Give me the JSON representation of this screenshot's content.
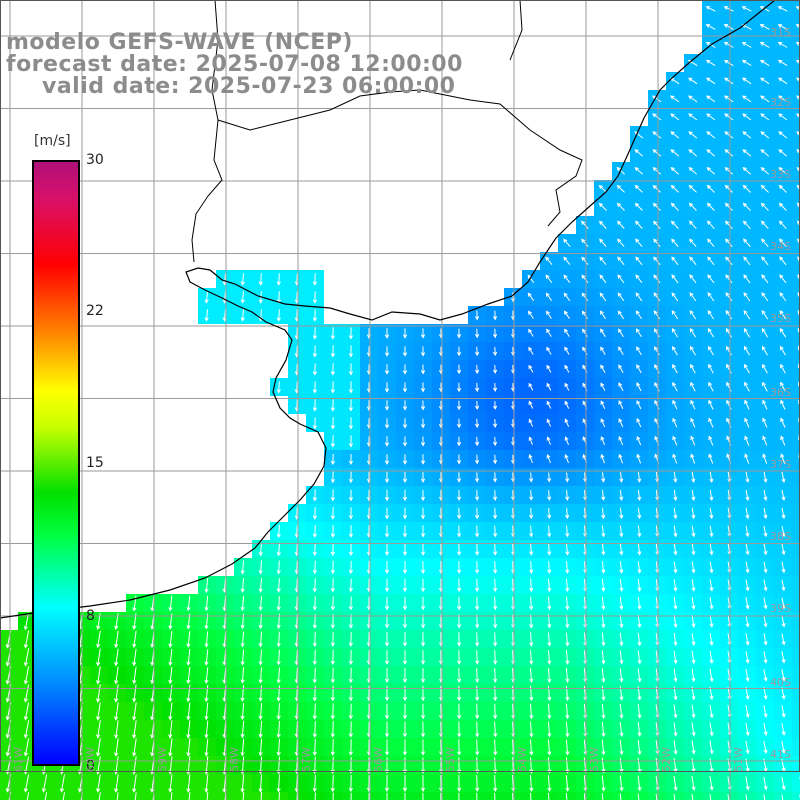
{
  "titles": {
    "line1": "modelo GEFS-WAVE (NCEP)",
    "line2": "forecast date: 2025-07-08 12:00:00",
    "line3": "valid date: 2025-07-23 06:00:00"
  },
  "colorbar": {
    "unit": "[m/s]",
    "min": 0,
    "max": 30,
    "ticks": [
      "30",
      "22",
      "15",
      "8",
      "0"
    ],
    "colors": [
      "#0000ff",
      "#0090ff",
      "#00ffff",
      "#00ff40",
      "#00e000",
      "#c8ff00",
      "#ffff00",
      "#ff8000",
      "#ff0000",
      "#d8106a",
      "#b0107a"
    ]
  },
  "latitude_labels": [
    "31S",
    "32S",
    "33S",
    "34S",
    "35S",
    "36S",
    "37S",
    "38S",
    "39S",
    "40S",
    "41S"
  ],
  "longitude_labels": [
    "61W",
    "60W",
    "59W",
    "58W",
    "57W",
    "56W",
    "55W",
    "54W",
    "53W",
    "52W",
    "51W"
  ],
  "field": {
    "variable": "wind speed",
    "units": "m/s",
    "wind_direction_note": "arrows point mostly southward/northward per quadrant"
  }
}
